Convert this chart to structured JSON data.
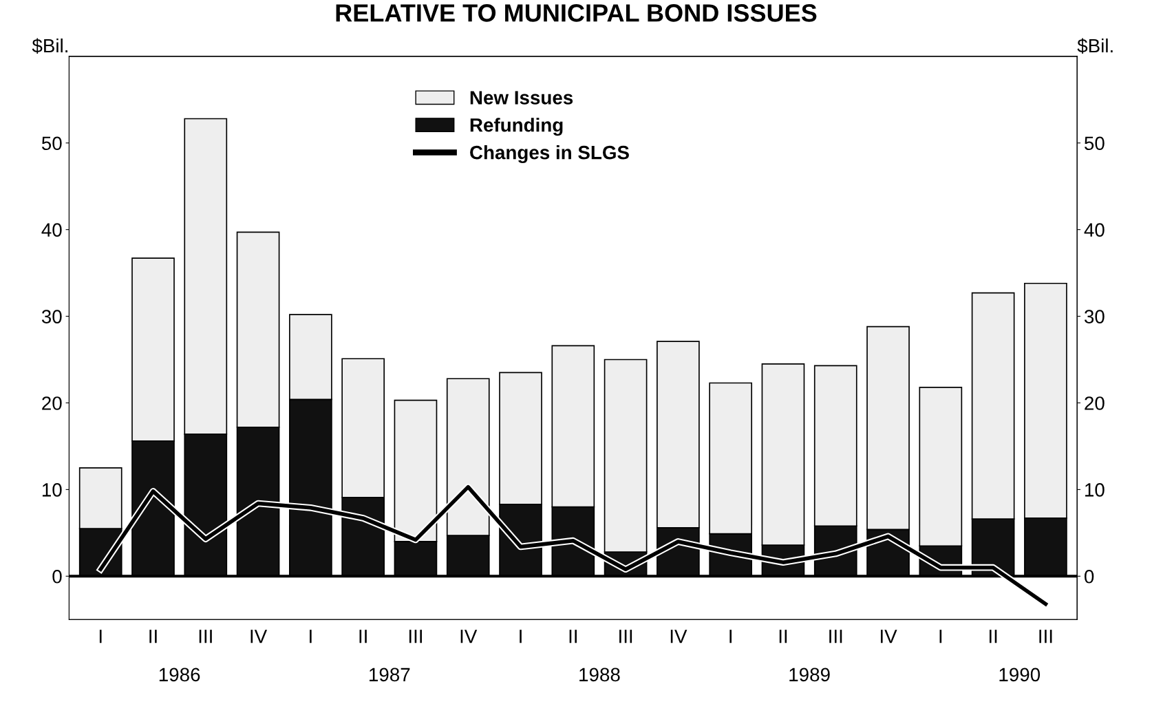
{
  "chart_data": {
    "type": "bar",
    "stacked": true,
    "title": "RELATIVE TO MUNICIPAL BOND ISSUES",
    "ylabel": "$Bil.",
    "y2label": "$Bil.",
    "categories": [
      "I",
      "II",
      "III",
      "IV",
      "I",
      "II",
      "III",
      "IV",
      "I",
      "II",
      "III",
      "IV",
      "I",
      "II",
      "III",
      "IV",
      "I",
      "II",
      "III"
    ],
    "series": [
      {
        "name": "Refunding",
        "color": "#111111",
        "values": [
          5.5,
          15.6,
          16.4,
          17.2,
          20.4,
          9.1,
          4.0,
          4.7,
          8.3,
          8.0,
          2.8,
          5.6,
          4.9,
          3.6,
          5.8,
          5.4,
          3.5,
          6.6,
          6.7
        ]
      },
      {
        "name": "New Issues",
        "color": "#eeeeee",
        "values": [
          7.0,
          21.1,
          36.4,
          22.5,
          9.8,
          16.0,
          16.3,
          18.1,
          15.2,
          18.6,
          22.2,
          21.5,
          17.4,
          20.9,
          18.5,
          23.4,
          18.3,
          26.1,
          27.1
        ]
      },
      {
        "name": "Changes in SLGS",
        "type": "line",
        "color": "#000000",
        "values": [
          0.8,
          9.8,
          4.3,
          8.4,
          7.9,
          6.7,
          4.2,
          10.3,
          3.4,
          4.1,
          0.8,
          4.0,
          2.7,
          1.6,
          2.6,
          4.6,
          1.0,
          1.0,
          -3.2
        ]
      }
    ],
    "annotations": [
      "1986",
      "1987",
      "1988",
      "1989",
      "1990"
    ],
    "ylim": [
      -5,
      60
    ],
    "yticks": [
      0,
      10,
      20,
      30,
      40,
      50
    ],
    "y2lim": [
      -5,
      60
    ],
    "y2ticks": [
      0,
      10,
      20,
      30,
      40,
      50
    ],
    "ref_lines": [
      {
        "axis": "y",
        "value": 0,
        "color": "#000000"
      }
    ],
    "legend": "top",
    "grid": false
  }
}
